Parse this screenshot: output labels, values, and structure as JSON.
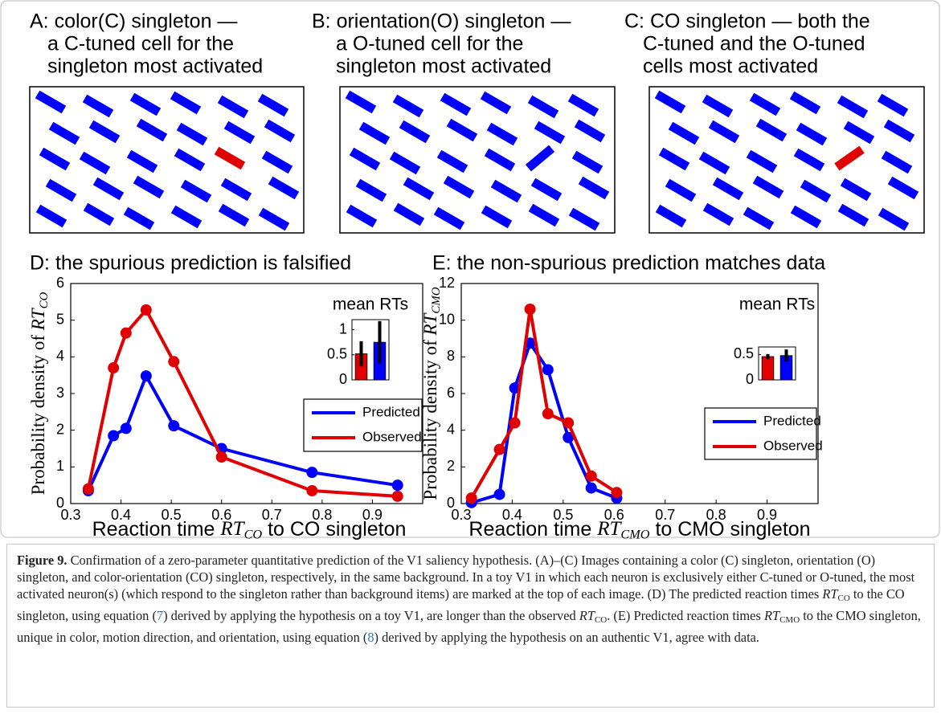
{
  "panels": [
    {
      "title": [
        "A: color(C) singleton —",
        "a C-tuned cell for the",
        "singleton most activated"
      ]
    },
    {
      "title": [
        "B: orientation(O) singleton —",
        "a O-tuned cell for the",
        "singleton most activated"
      ]
    },
    {
      "title": [
        "C: CO singleton — both the",
        "C-tuned and the O-tuned",
        "cells most activated"
      ]
    }
  ],
  "chart_data": [
    {
      "type": "line",
      "title": "D: the spurious prediction is falsified",
      "ylabel": [
        {
          "text": "Probability density of ",
          "style": "plain"
        },
        {
          "text": "RT",
          "style": "italic"
        },
        {
          "text": "CO",
          "style": "sub"
        }
      ],
      "xlabel": [
        {
          "text": "Reaction time ",
          "style": "plain"
        },
        {
          "text": "RT",
          "style": "italic"
        },
        {
          "text": "CO",
          "style": "sub"
        },
        {
          "text": " to CO singleton",
          "style": "plain"
        }
      ],
      "xlim": [
        0.3,
        1.0
      ],
      "xticks": [
        0.3,
        0.4,
        0.5,
        0.6,
        0.7,
        0.8,
        0.9
      ],
      "ylim": [
        0,
        6
      ],
      "yticks": [
        0,
        1,
        2,
        3,
        4,
        5,
        6
      ],
      "legend": "lower right",
      "series": [
        {
          "name": "Predicted",
          "color": "#0000ff",
          "x": [
            0.335,
            0.385,
            0.41,
            0.45,
            0.505,
            0.6,
            0.78,
            0.95
          ],
          "values": [
            0.35,
            1.85,
            2.05,
            3.48,
            2.12,
            1.5,
            0.85,
            0.5
          ]
        },
        {
          "name": "Observed",
          "color": "#e00000",
          "x": [
            0.335,
            0.385,
            0.41,
            0.45,
            0.505,
            0.6,
            0.78,
            0.95
          ],
          "values": [
            0.4,
            3.7,
            4.65,
            5.28,
            3.87,
            1.27,
            0.35,
            0.2
          ]
        }
      ],
      "inset": {
        "type": "bar",
        "title": "mean RTs",
        "categories": [
          null,
          null
        ],
        "values": [
          0.52,
          0.75
        ],
        "errors": [
          0.25,
          0.42
        ],
        "colors": [
          "#e00000",
          "#0000ff"
        ],
        "ylim": [
          0,
          1.2
        ],
        "yticks": [
          0,
          0.5,
          1
        ]
      }
    },
    {
      "type": "line",
      "title": "E: the non-spurious prediction matches data",
      "ylabel": [
        {
          "text": "Probability density of ",
          "style": "plain"
        },
        {
          "text": "RT",
          "style": "italic"
        },
        {
          "text": "CMO",
          "style": "sub"
        }
      ],
      "xlabel": [
        {
          "text": "Reaction time ",
          "style": "plain"
        },
        {
          "text": "RT",
          "style": "italic"
        },
        {
          "text": "CMO",
          "style": "sub"
        },
        {
          "text": " to CMO singleton",
          "style": "plain"
        }
      ],
      "xlim": [
        0.3,
        1.0
      ],
      "xticks": [
        0.3,
        0.4,
        0.5,
        0.6,
        0.7,
        0.8,
        0.9
      ],
      "ylim": [
        0,
        12
      ],
      "yticks": [
        0,
        2,
        4,
        6,
        8,
        10,
        12
      ],
      "legend": "lower right",
      "series": [
        {
          "name": "Predicted",
          "color": "#0000ff",
          "x": [
            0.32,
            0.375,
            0.405,
            0.435,
            0.47,
            0.51,
            0.555,
            0.605
          ],
          "values": [
            0.05,
            0.5,
            6.3,
            8.75,
            7.3,
            3.6,
            0.85,
            0.3
          ]
        },
        {
          "name": "Observed",
          "color": "#e00000",
          "x": [
            0.32,
            0.375,
            0.405,
            0.435,
            0.47,
            0.51,
            0.555,
            0.605
          ],
          "values": [
            0.3,
            2.95,
            4.4,
            10.6,
            4.9,
            4.4,
            1.5,
            0.6
          ]
        }
      ],
      "inset": {
        "type": "bar",
        "title": "mean RTs",
        "categories": [
          null,
          null
        ],
        "values": [
          0.46,
          0.48
        ],
        "errors": [
          0.05,
          0.12
        ],
        "colors": [
          "#e00000",
          "#0000ff"
        ],
        "ylim": [
          0,
          0.65
        ],
        "yticks": [
          0,
          0.5
        ]
      }
    }
  ],
  "caption": [
    {
      "text": "Figure 9.",
      "style": "bold"
    },
    {
      "text": " Confirmation of a zero-parameter quantitative prediction of the V1 saliency hypothesis. (A)–(C) Images containing a color (C) singleton, orientation (O) singleton, and color-orientation (CO) singleton, respectively, in the same background. In a toy V1 in which each neuron is exclusively either C-tuned or O-tuned, the most activated neuron(s) (which respond to the singleton rather than background items) are marked at the top of each image. (D) The predicted reaction times ",
      "style": "plain"
    },
    {
      "text": "RT",
      "style": "italic"
    },
    {
      "text": "CO",
      "style": "sub"
    },
    {
      "text": " to the CO singleton, using equation (",
      "style": "plain"
    },
    {
      "text": "7",
      "style": "link"
    },
    {
      "text": ") derived by applying the hypothesis on a toy V1, are longer than the observed ",
      "style": "plain"
    },
    {
      "text": "RT",
      "style": "italic"
    },
    {
      "text": "CO",
      "style": "sub"
    },
    {
      "text": ". (E) Predicted reaction times ",
      "style": "plain"
    },
    {
      "text": "RT",
      "style": "italic"
    },
    {
      "text": "CMO",
      "style": "sub"
    },
    {
      "text": " to the CMO singleton, unique in color, motion direction, and orientation, using equation (",
      "style": "plain"
    },
    {
      "text": "8",
      "style": "link"
    },
    {
      "text": ") derived by applying the hypothesis on an authentic V1, agree with data.",
      "style": "plain"
    }
  ]
}
